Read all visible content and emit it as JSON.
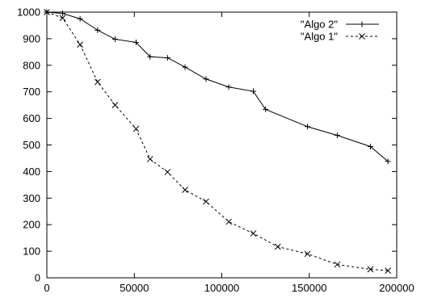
{
  "chart_data": {
    "type": "line",
    "title": "",
    "xlabel": "",
    "ylabel": "",
    "xlim": [
      0,
      200000
    ],
    "ylim": [
      0,
      1000
    ],
    "x_ticks": [
      0,
      50000,
      100000,
      150000,
      200000
    ],
    "y_ticks": [
      0,
      100,
      200,
      300,
      400,
      500,
      600,
      700,
      800,
      900,
      1000
    ],
    "x_tick_labels": [
      "0",
      "50000",
      "100000",
      "150000",
      "200000"
    ],
    "y_tick_labels": [
      "0",
      "100",
      "200",
      "300",
      "400",
      "500",
      "600",
      "700",
      "800",
      "900",
      "1000"
    ],
    "grid": false,
    "legend_position": "top-right",
    "series": [
      {
        "name": "\"Algo 2\"",
        "style": "solid",
        "marker": "plus",
        "color": "#000000",
        "points": [
          [
            0,
            1000
          ],
          [
            9000,
            995
          ],
          [
            19000,
            975
          ],
          [
            29000,
            932
          ],
          [
            39000,
            898
          ],
          [
            51000,
            886
          ],
          [
            59000,
            832
          ],
          [
            69000,
            828
          ],
          [
            79000,
            793
          ],
          [
            91000,
            748
          ],
          [
            104000,
            718
          ],
          [
            118000,
            702
          ],
          [
            125000,
            634
          ],
          [
            149000,
            569
          ],
          [
            166000,
            536
          ],
          [
            185000,
            494
          ],
          [
            195000,
            438
          ]
        ]
      },
      {
        "name": "\"Algo 1\"",
        "style": "dashed",
        "marker": "cross",
        "color": "#000000",
        "points": [
          [
            0,
            1000
          ],
          [
            9000,
            978
          ],
          [
            19000,
            878
          ],
          [
            29000,
            737
          ],
          [
            39000,
            650
          ],
          [
            51000,
            561
          ],
          [
            59000,
            447
          ],
          [
            69000,
            398
          ],
          [
            79000,
            331
          ],
          [
            91000,
            287
          ],
          [
            104000,
            211
          ],
          [
            118000,
            167
          ],
          [
            132000,
            117
          ],
          [
            149000,
            90
          ],
          [
            166000,
            50
          ],
          [
            185000,
            32
          ],
          [
            195000,
            27
          ]
        ]
      }
    ]
  }
}
